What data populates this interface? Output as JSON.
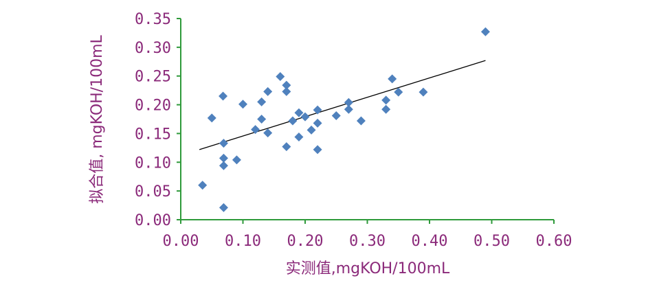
{
  "chart_data": {
    "type": "scatter",
    "xlabel": "实测值,mgKOH/100mL",
    "ylabel": "拟合值, mgKOH/100mL",
    "xlim": [
      0,
      0.6
    ],
    "ylim": [
      0,
      0.35
    ],
    "x_ticks": [
      "0.00",
      "0.10",
      "0.20",
      "0.30",
      "0.40",
      "0.50",
      "0.60"
    ],
    "y_ticks": [
      "0.00",
      "0.05",
      "0.10",
      "0.15",
      "0.20",
      "0.25",
      "0.30",
      "0.35"
    ],
    "x_tick_values": [
      0,
      0.1,
      0.2,
      0.3,
      0.4,
      0.5,
      0.6
    ],
    "y_tick_values": [
      0,
      0.05,
      0.1,
      0.15,
      0.2,
      0.25,
      0.3,
      0.35
    ],
    "points": [
      {
        "x": 0.035,
        "y": 0.06
      },
      {
        "x": 0.05,
        "y": 0.177
      },
      {
        "x": 0.068,
        "y": 0.215
      },
      {
        "x": 0.069,
        "y": 0.133
      },
      {
        "x": 0.069,
        "y": 0.107
      },
      {
        "x": 0.069,
        "y": 0.094
      },
      {
        "x": 0.069,
        "y": 0.021
      },
      {
        "x": 0.09,
        "y": 0.104
      },
      {
        "x": 0.1,
        "y": 0.201
      },
      {
        "x": 0.12,
        "y": 0.157
      },
      {
        "x": 0.13,
        "y": 0.205
      },
      {
        "x": 0.13,
        "y": 0.175
      },
      {
        "x": 0.14,
        "y": 0.223
      },
      {
        "x": 0.14,
        "y": 0.151
      },
      {
        "x": 0.16,
        "y": 0.249
      },
      {
        "x": 0.17,
        "y": 0.234
      },
      {
        "x": 0.17,
        "y": 0.223
      },
      {
        "x": 0.17,
        "y": 0.127
      },
      {
        "x": 0.18,
        "y": 0.172
      },
      {
        "x": 0.19,
        "y": 0.186
      },
      {
        "x": 0.19,
        "y": 0.144
      },
      {
        "x": 0.2,
        "y": 0.179
      },
      {
        "x": 0.21,
        "y": 0.156
      },
      {
        "x": 0.22,
        "y": 0.191
      },
      {
        "x": 0.22,
        "y": 0.168
      },
      {
        "x": 0.22,
        "y": 0.122
      },
      {
        "x": 0.25,
        "y": 0.181
      },
      {
        "x": 0.27,
        "y": 0.204
      },
      {
        "x": 0.27,
        "y": 0.192
      },
      {
        "x": 0.29,
        "y": 0.172
      },
      {
        "x": 0.33,
        "y": 0.208
      },
      {
        "x": 0.33,
        "y": 0.192
      },
      {
        "x": 0.34,
        "y": 0.245
      },
      {
        "x": 0.35,
        "y": 0.222
      },
      {
        "x": 0.39,
        "y": 0.222
      },
      {
        "x": 0.49,
        "y": 0.327
      }
    ],
    "trendline": {
      "x": [
        0.03,
        0.49
      ],
      "y": [
        0.122,
        0.277
      ]
    },
    "marker_color": "#4f81bd",
    "axis_color": "#2e9a3a",
    "text_color": "#8b2a7a",
    "trendline_color": "#000000",
    "grid": false,
    "legend": "none"
  }
}
